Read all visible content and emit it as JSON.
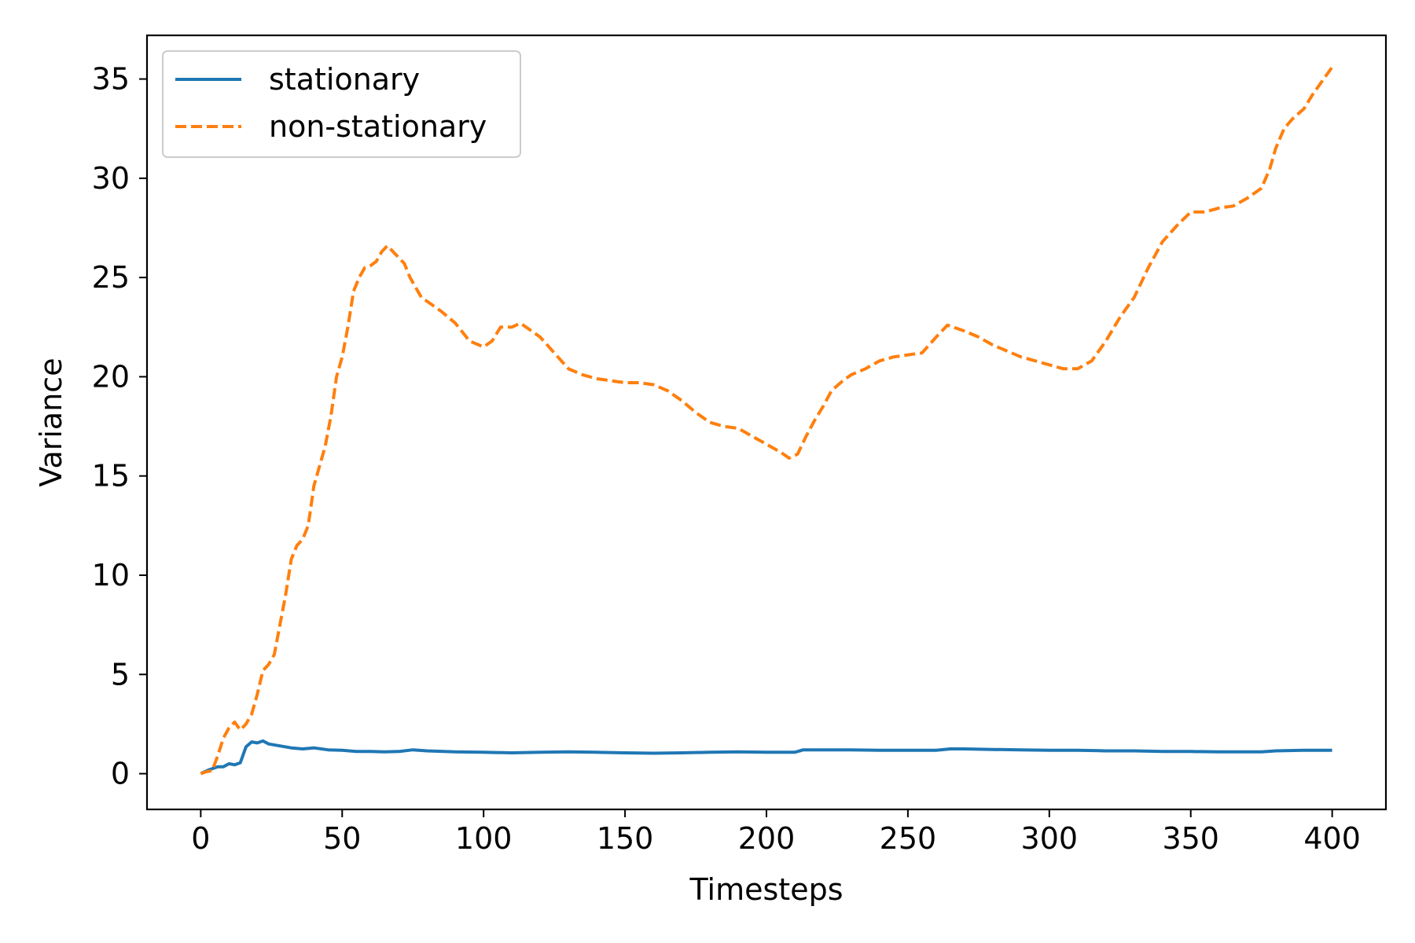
{
  "chart_data": {
    "type": "line",
    "title": "",
    "xlabel": "Timesteps",
    "ylabel": "Variance",
    "xlim": [
      -19,
      419
    ],
    "ylim": [
      -1.8,
      37.2
    ],
    "x_ticks": [
      0,
      50,
      100,
      150,
      200,
      250,
      300,
      350,
      400
    ],
    "y_ticks": [
      0,
      5,
      10,
      15,
      20,
      25,
      30,
      35
    ],
    "grid": false,
    "legend": "top-left",
    "series": [
      {
        "name": "stationary",
        "color": "#1f77b4",
        "style": "solid",
        "points": [
          [
            0,
            0
          ],
          [
            3,
            0.2
          ],
          [
            6,
            0.35
          ],
          [
            8,
            0.35
          ],
          [
            10,
            0.5
          ],
          [
            12,
            0.45
          ],
          [
            14,
            0.55
          ],
          [
            16,
            1.35
          ],
          [
            18,
            1.6
          ],
          [
            20,
            1.55
          ],
          [
            22,
            1.65
          ],
          [
            24,
            1.5
          ],
          [
            28,
            1.4
          ],
          [
            32,
            1.3
          ],
          [
            36,
            1.25
          ],
          [
            40,
            1.3
          ],
          [
            45,
            1.2
          ],
          [
            50,
            1.18
          ],
          [
            55,
            1.12
          ],
          [
            60,
            1.12
          ],
          [
            65,
            1.1
          ],
          [
            70,
            1.12
          ],
          [
            75,
            1.2
          ],
          [
            80,
            1.15
          ],
          [
            90,
            1.1
          ],
          [
            100,
            1.08
          ],
          [
            110,
            1.05
          ],
          [
            120,
            1.08
          ],
          [
            130,
            1.1
          ],
          [
            140,
            1.08
          ],
          [
            150,
            1.05
          ],
          [
            160,
            1.03
          ],
          [
            170,
            1.05
          ],
          [
            180,
            1.08
          ],
          [
            190,
            1.1
          ],
          [
            200,
            1.08
          ],
          [
            210,
            1.08
          ],
          [
            213,
            1.2
          ],
          [
            220,
            1.2
          ],
          [
            230,
            1.2
          ],
          [
            240,
            1.18
          ],
          [
            250,
            1.18
          ],
          [
            260,
            1.18
          ],
          [
            265,
            1.25
          ],
          [
            270,
            1.25
          ],
          [
            280,
            1.22
          ],
          [
            290,
            1.2
          ],
          [
            300,
            1.18
          ],
          [
            310,
            1.18
          ],
          [
            320,
            1.15
          ],
          [
            330,
            1.15
          ],
          [
            340,
            1.12
          ],
          [
            350,
            1.12
          ],
          [
            360,
            1.1
          ],
          [
            370,
            1.1
          ],
          [
            375,
            1.1
          ],
          [
            380,
            1.15
          ],
          [
            390,
            1.18
          ],
          [
            400,
            1.18
          ]
        ]
      },
      {
        "name": "non-stationary",
        "color": "#ff7f0e",
        "style": "dashed",
        "points": [
          [
            0,
            0
          ],
          [
            2,
            0.1
          ],
          [
            4,
            0.15
          ],
          [
            6,
            0.9
          ],
          [
            8,
            1.8
          ],
          [
            10,
            2.3
          ],
          [
            12,
            2.6
          ],
          [
            14,
            2.2
          ],
          [
            16,
            2.5
          ],
          [
            18,
            3.0
          ],
          [
            20,
            4.0
          ],
          [
            22,
            5.2
          ],
          [
            24,
            5.5
          ],
          [
            26,
            6.0
          ],
          [
            28,
            7.5
          ],
          [
            30,
            9.0
          ],
          [
            32,
            10.8
          ],
          [
            34,
            11.5
          ],
          [
            36,
            11.8
          ],
          [
            38,
            12.5
          ],
          [
            40,
            14.5
          ],
          [
            42,
            15.5
          ],
          [
            44,
            16.5
          ],
          [
            46,
            18.0
          ],
          [
            48,
            20.0
          ],
          [
            50,
            21.0
          ],
          [
            52,
            22.5
          ],
          [
            54,
            24.3
          ],
          [
            56,
            25.0
          ],
          [
            58,
            25.5
          ],
          [
            60,
            25.6
          ],
          [
            62,
            25.8
          ],
          [
            64,
            26.3
          ],
          [
            66,
            26.6
          ],
          [
            68,
            26.3
          ],
          [
            70,
            26.0
          ],
          [
            72,
            25.7
          ],
          [
            74,
            25.0
          ],
          [
            76,
            24.5
          ],
          [
            78,
            24.0
          ],
          [
            80,
            23.8
          ],
          [
            85,
            23.3
          ],
          [
            90,
            22.7
          ],
          [
            95,
            21.8
          ],
          [
            100,
            21.5
          ],
          [
            103,
            21.8
          ],
          [
            106,
            22.5
          ],
          [
            110,
            22.5
          ],
          [
            113,
            22.7
          ],
          [
            117,
            22.3
          ],
          [
            120,
            22.0
          ],
          [
            125,
            21.2
          ],
          [
            130,
            20.4
          ],
          [
            135,
            20.1
          ],
          [
            140,
            19.9
          ],
          [
            145,
            19.8
          ],
          [
            150,
            19.7
          ],
          [
            155,
            19.7
          ],
          [
            160,
            19.6
          ],
          [
            165,
            19.3
          ],
          [
            170,
            18.8
          ],
          [
            175,
            18.2
          ],
          [
            180,
            17.7
          ],
          [
            185,
            17.5
          ],
          [
            190,
            17.4
          ],
          [
            195,
            17.0
          ],
          [
            200,
            16.6
          ],
          [
            205,
            16.2
          ],
          [
            208,
            15.9
          ],
          [
            211,
            16.1
          ],
          [
            214,
            17.0
          ],
          [
            217,
            17.8
          ],
          [
            220,
            18.5
          ],
          [
            223,
            19.3
          ],
          [
            227,
            19.8
          ],
          [
            230,
            20.1
          ],
          [
            235,
            20.4
          ],
          [
            240,
            20.8
          ],
          [
            245,
            21.0
          ],
          [
            250,
            21.1
          ],
          [
            255,
            21.2
          ],
          [
            260,
            22.0
          ],
          [
            264,
            22.6
          ],
          [
            270,
            22.3
          ],
          [
            275,
            22.0
          ],
          [
            280,
            21.6
          ],
          [
            285,
            21.3
          ],
          [
            290,
            21.0
          ],
          [
            295,
            20.8
          ],
          [
            300,
            20.6
          ],
          [
            305,
            20.4
          ],
          [
            310,
            20.4
          ],
          [
            315,
            20.8
          ],
          [
            320,
            21.8
          ],
          [
            325,
            23.0
          ],
          [
            330,
            24.0
          ],
          [
            335,
            25.5
          ],
          [
            340,
            26.8
          ],
          [
            345,
            27.6
          ],
          [
            350,
            28.3
          ],
          [
            355,
            28.3
          ],
          [
            360,
            28.5
          ],
          [
            365,
            28.6
          ],
          [
            370,
            29.0
          ],
          [
            375,
            29.5
          ],
          [
            378,
            30.5
          ],
          [
            380,
            31.5
          ],
          [
            383,
            32.5
          ],
          [
            386,
            33.0
          ],
          [
            390,
            33.5
          ],
          [
            393,
            34.2
          ],
          [
            396,
            34.8
          ],
          [
            400,
            35.6
          ]
        ]
      }
    ]
  }
}
